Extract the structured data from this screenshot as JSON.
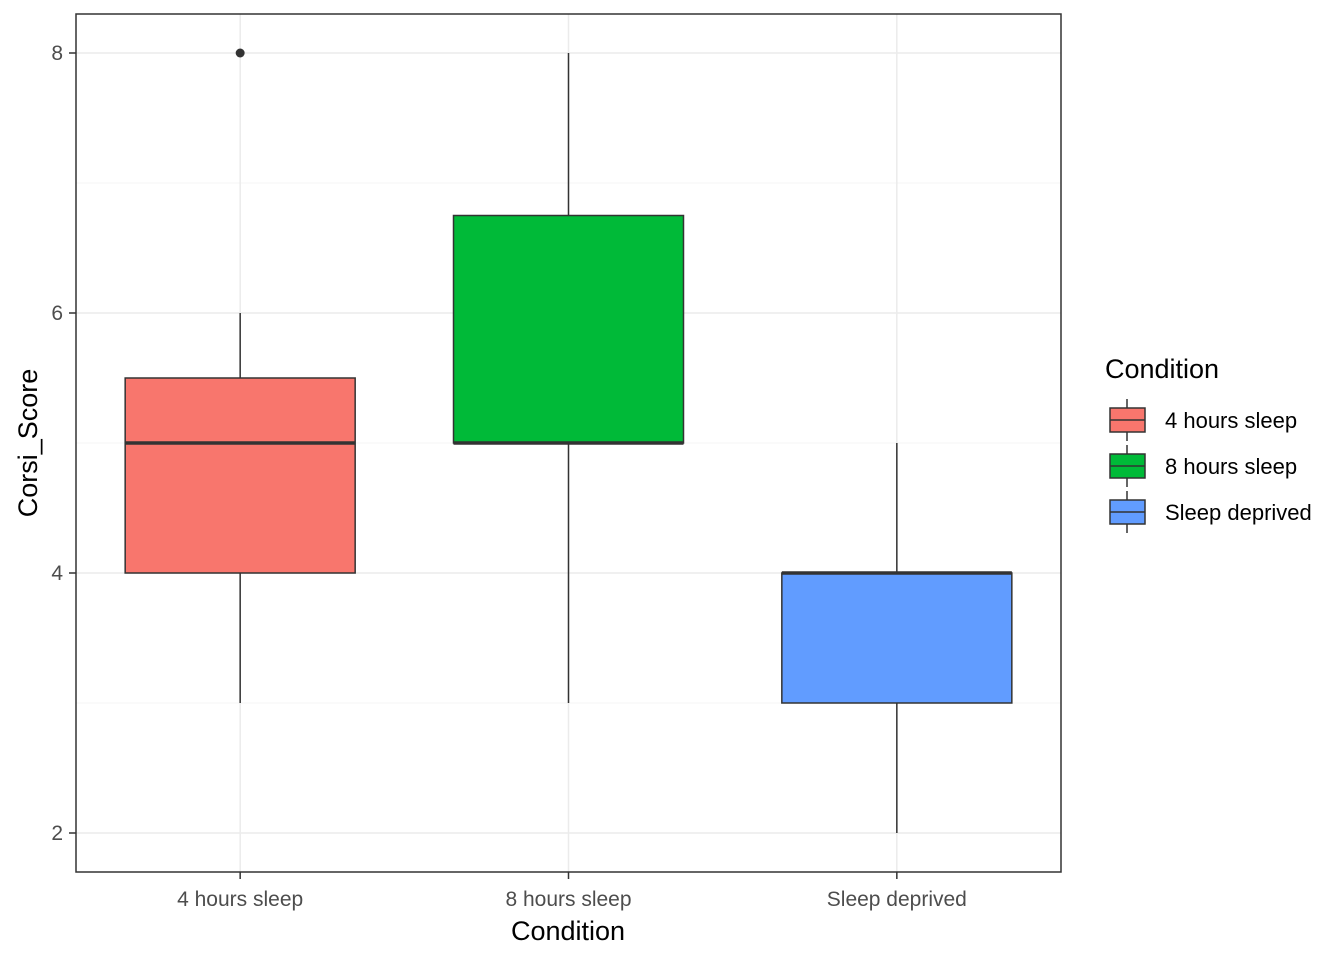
{
  "chart_data": {
    "type": "box",
    "xlabel": "Condition",
    "ylabel": "Corsi_Score",
    "categories": [
      "4 hours sleep",
      "8 hours sleep",
      "Sleep deprived"
    ],
    "ylim": [
      1.7,
      8.3
    ],
    "yticks": [
      2,
      4,
      6,
      8
    ],
    "grid": true,
    "legend": {
      "title": "Condition",
      "position": "right",
      "entries": [
        "4 hours sleep",
        "8 hours sleep",
        "Sleep deprived"
      ]
    },
    "series": [
      {
        "category": "4 hours sleep",
        "whisker_low": 3,
        "q1": 4,
        "median": 5,
        "q3": 5.5,
        "whisker_high": 6,
        "outliers": [
          8
        ],
        "color": "#F8766D"
      },
      {
        "category": "8 hours sleep",
        "whisker_low": 3,
        "q1": 5,
        "median": 5,
        "q3": 6.75,
        "whisker_high": 8,
        "outliers": [],
        "color": "#00BA38"
      },
      {
        "category": "Sleep deprived",
        "whisker_low": 2,
        "q1": 3,
        "median": 4,
        "q3": 4,
        "whisker_high": 5,
        "outliers": [],
        "color": "#619CFF"
      }
    ],
    "colors": {
      "panel_border": "#333333",
      "grid_major": "#ebebeb",
      "grid_minor": "#f5f5f5",
      "box_outline": "#333333"
    }
  }
}
